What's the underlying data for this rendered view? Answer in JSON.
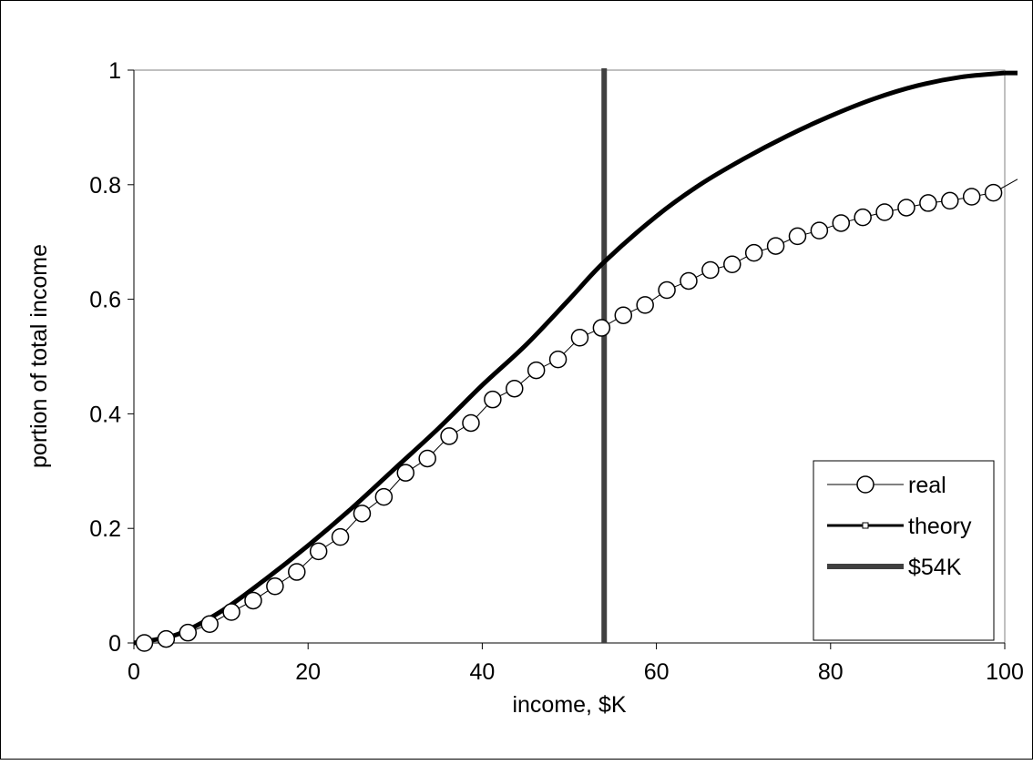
{
  "chart_data": {
    "type": "line",
    "xlabel": "income, $K",
    "ylabel": "portion of total income",
    "xlim": [
      0,
      100
    ],
    "ylim": [
      0,
      1
    ],
    "xticks": [
      "0",
      "20",
      "40",
      "60",
      "80",
      "100"
    ],
    "yticks": [
      "0",
      "0.2",
      "0.4",
      "0.6",
      "0.8",
      "1"
    ],
    "grid": false,
    "legend_position": "bottom-right",
    "series": [
      {
        "name": "real",
        "color": "#000000",
        "marker": "open-circle",
        "x": [
          1.2,
          3.7,
          6.2,
          8.7,
          11.2,
          13.7,
          16.2,
          18.7,
          21.2,
          23.7,
          26.2,
          28.7,
          31.2,
          33.7,
          36.2,
          38.7,
          41.2,
          43.7,
          46.2,
          48.7,
          51.2,
          53.7,
          56.2,
          58.7,
          61.2,
          63.7,
          66.2,
          68.7,
          71.2,
          73.7,
          76.2,
          78.7,
          81.2,
          83.7,
          86.2,
          88.7,
          91.2,
          93.7,
          96.2,
          98.7
        ],
        "y": [
          0.0,
          0.007,
          0.018,
          0.033,
          0.054,
          0.074,
          0.099,
          0.124,
          0.16,
          0.185,
          0.226,
          0.255,
          0.297,
          0.322,
          0.361,
          0.384,
          0.425,
          0.444,
          0.476,
          0.495,
          0.533,
          0.55,
          0.572,
          0.59,
          0.616,
          0.632,
          0.651,
          0.661,
          0.681,
          0.693,
          0.71,
          0.72,
          0.733,
          0.743,
          0.752,
          0.76,
          0.768,
          0.772,
          0.779,
          0.786
        ],
        "line_end": [
          100,
          0.8
        ]
      },
      {
        "name": "theory",
        "color": "#000000",
        "marker": "small-square",
        "x": [
          0,
          5,
          10,
          15,
          20,
          25,
          30,
          35,
          40,
          45,
          50,
          54,
          60,
          65,
          70,
          75,
          80,
          85,
          90,
          95,
          100
        ],
        "y": [
          0.0,
          0.015,
          0.055,
          0.11,
          0.17,
          0.235,
          0.305,
          0.375,
          0.45,
          0.52,
          0.6,
          0.665,
          0.745,
          0.8,
          0.845,
          0.885,
          0.92,
          0.95,
          0.973,
          0.988,
          0.995
        ]
      },
      {
        "name": "$54K",
        "color": "#404040",
        "x_value": 54
      }
    ]
  }
}
